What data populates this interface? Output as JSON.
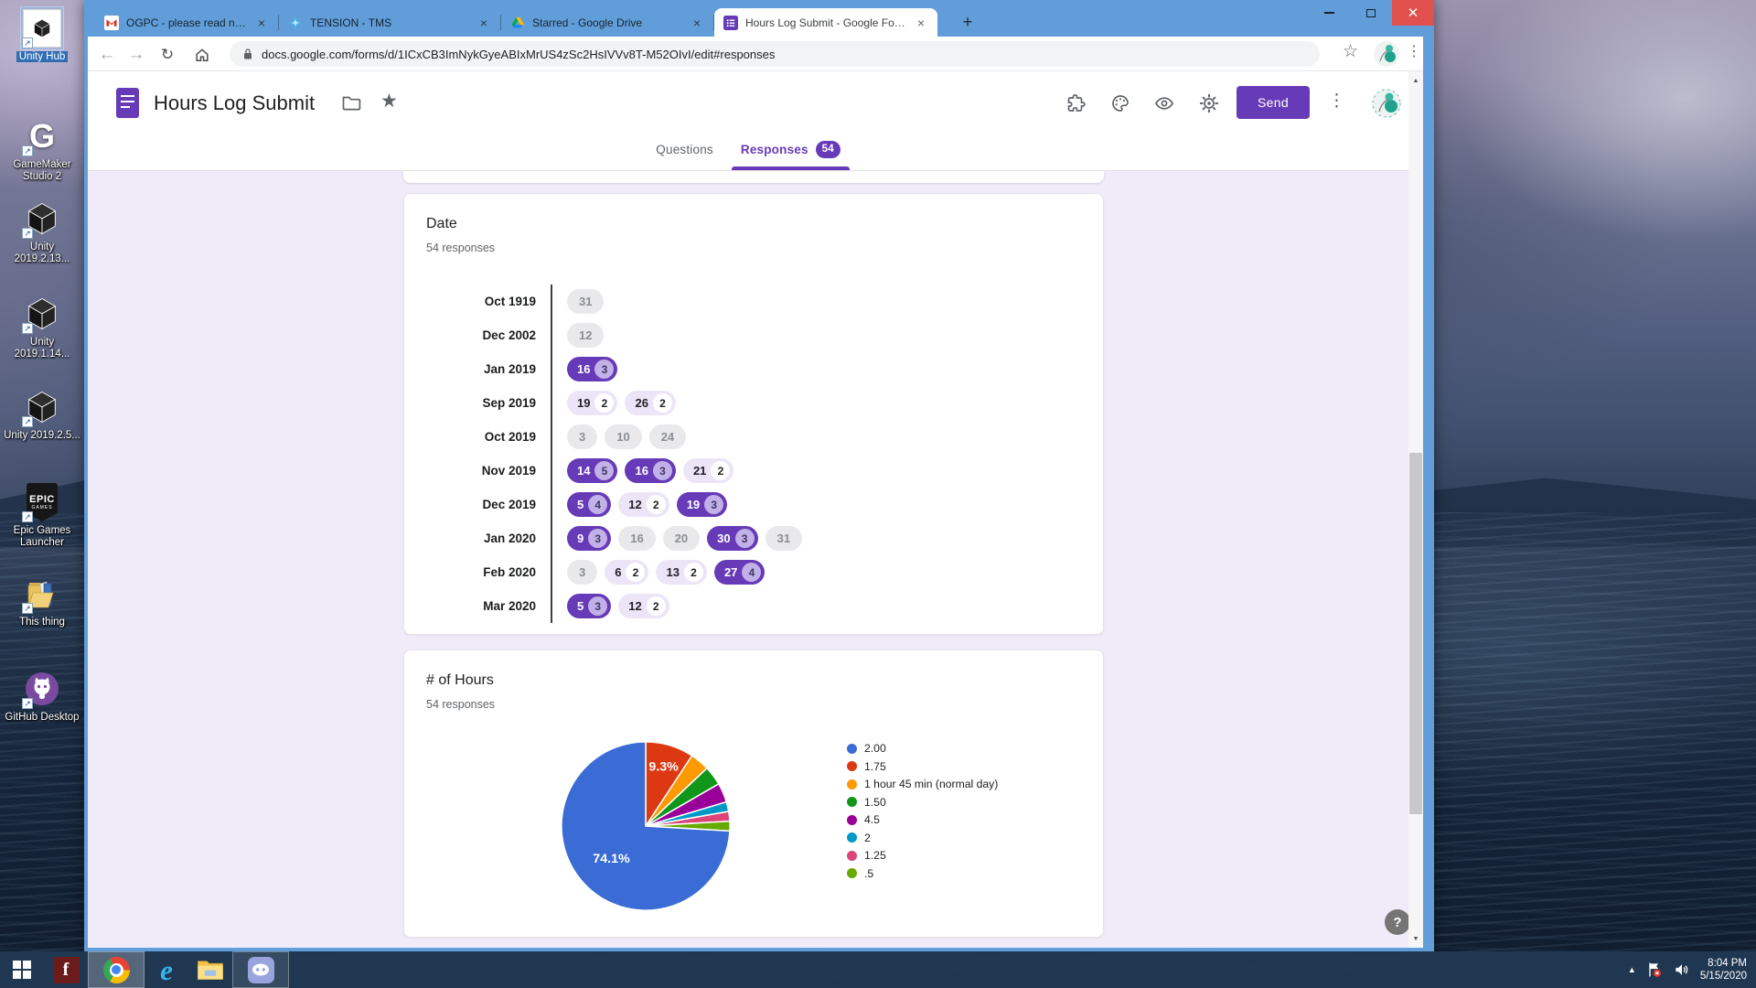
{
  "desktop": {
    "icons": [
      {
        "label": "Unity Hub",
        "icon": "unity-hub",
        "selected": true
      },
      {
        "label": "GameMaker Studio 2",
        "icon": "gamemaker",
        "selected": false
      },
      {
        "label": "Unity 2019.2.13...",
        "icon": "unity",
        "selected": false
      },
      {
        "label": "Unity 2019.1.14...",
        "icon": "unity",
        "selected": false
      },
      {
        "label": "Unity 2019.2.5...",
        "icon": "unity",
        "selected": false
      },
      {
        "label": "Epic Games Launcher",
        "icon": "epic",
        "selected": false
      },
      {
        "label": "This thing",
        "icon": "open-folder",
        "selected": false
      },
      {
        "label": "GitHub Desktop",
        "icon": "github",
        "selected": false
      }
    ]
  },
  "taskbar": {
    "apps": [
      {
        "name": "start",
        "icon": "windows",
        "running": false,
        "focused": false
      },
      {
        "name": "flash-f",
        "icon": "letter-f",
        "running": false,
        "focused": false
      },
      {
        "name": "chrome",
        "icon": "chrome",
        "running": true,
        "focused": true
      },
      {
        "name": "internet-explorer",
        "icon": "ie",
        "running": false,
        "focused": false
      },
      {
        "name": "file-explorer",
        "icon": "explorer",
        "running": false,
        "focused": false
      },
      {
        "name": "discord",
        "icon": "discord",
        "running": true,
        "focused": false
      }
    ],
    "tray": {
      "time": "8:04 PM",
      "date": "5/15/2020"
    }
  },
  "browser": {
    "tabs": [
      {
        "title": "OGPC - please read now - 12932",
        "icon": "gmail",
        "active": false
      },
      {
        "title": "TENSION - TMS",
        "icon": "tension",
        "active": false
      },
      {
        "title": "Starred - Google Drive",
        "icon": "drive",
        "active": false
      },
      {
        "title": "Hours Log Submit - Google Form",
        "icon": "forms",
        "active": true
      }
    ],
    "url": "docs.google.com/forms/d/1ICxCB3ImNykGyeABIxMrUS4zSc2HsIVVv8T-M52OIvI/edit#responses"
  },
  "form": {
    "title": "Hours Log Submit",
    "send_label": "Send",
    "nav": {
      "questions": "Questions",
      "responses": "Responses",
      "badge": "54"
    },
    "help_label": "?"
  },
  "chart_data": [
    {
      "type": "table",
      "style": "date-frequency-chips",
      "title": "Date",
      "subtitle": "54 responses",
      "rows": [
        {
          "label": "Oct 1919",
          "chips": [
            {
              "day": "31",
              "count": 1
            }
          ]
        },
        {
          "label": "Dec 2002",
          "chips": [
            {
              "day": "12",
              "count": 1
            }
          ]
        },
        {
          "label": "Jan 2019",
          "chips": [
            {
              "day": "16",
              "count": 3
            }
          ]
        },
        {
          "label": "Sep 2019",
          "chips": [
            {
              "day": "19",
              "count": 2
            },
            {
              "day": "26",
              "count": 2
            }
          ]
        },
        {
          "label": "Oct 2019",
          "chips": [
            {
              "day": "3",
              "count": 1
            },
            {
              "day": "10",
              "count": 1
            },
            {
              "day": "24",
              "count": 1
            }
          ]
        },
        {
          "label": "Nov 2019",
          "chips": [
            {
              "day": "14",
              "count": 5
            },
            {
              "day": "16",
              "count": 3
            },
            {
              "day": "21",
              "count": 2
            }
          ]
        },
        {
          "label": "Dec 2019",
          "chips": [
            {
              "day": "5",
              "count": 4
            },
            {
              "day": "12",
              "count": 2
            },
            {
              "day": "19",
              "count": 3
            }
          ]
        },
        {
          "label": "Jan 2020",
          "chips": [
            {
              "day": "9",
              "count": 3
            },
            {
              "day": "16",
              "count": 1
            },
            {
              "day": "20",
              "count": 1
            },
            {
              "day": "30",
              "count": 3
            },
            {
              "day": "31",
              "count": 1
            }
          ]
        },
        {
          "label": "Feb 2020",
          "chips": [
            {
              "day": "3",
              "count": 1
            },
            {
              "day": "6",
              "count": 2
            },
            {
              "day": "13",
              "count": 2
            },
            {
              "day": "27",
              "count": 4
            }
          ]
        },
        {
          "label": "Mar 2020",
          "chips": [
            {
              "day": "5",
              "count": 3
            },
            {
              "day": "12",
              "count": 2
            }
          ]
        }
      ]
    },
    {
      "type": "pie",
      "title": "# of Hours",
      "subtitle": "54 responses",
      "legend_position": "right",
      "slices": [
        {
          "label": "2.00",
          "value": 40,
          "color": "#3b6cd6",
          "pct_label": "74.1%"
        },
        {
          "label": "1.75",
          "value": 5,
          "color": "#dc3912",
          "pct_label": "9.3%"
        },
        {
          "label": "1 hour 45 min (normal day)",
          "value": 2,
          "color": "#ff9900",
          "pct_label": ""
        },
        {
          "label": "1.50",
          "value": 2,
          "color": "#109618",
          "pct_label": ""
        },
        {
          "label": "4.5",
          "value": 2,
          "color": "#990099",
          "pct_label": ""
        },
        {
          "label": "2",
          "value": 1,
          "color": "#0099c6",
          "pct_label": ""
        },
        {
          "label": "1.25",
          "value": 1,
          "color": "#dd4477",
          "pct_label": ""
        },
        {
          "label": ".5",
          "value": 1,
          "color": "#66aa00",
          "pct_label": ""
        }
      ],
      "draw_order": [
        1,
        2,
        3,
        4,
        5,
        6,
        7,
        0
      ]
    }
  ]
}
